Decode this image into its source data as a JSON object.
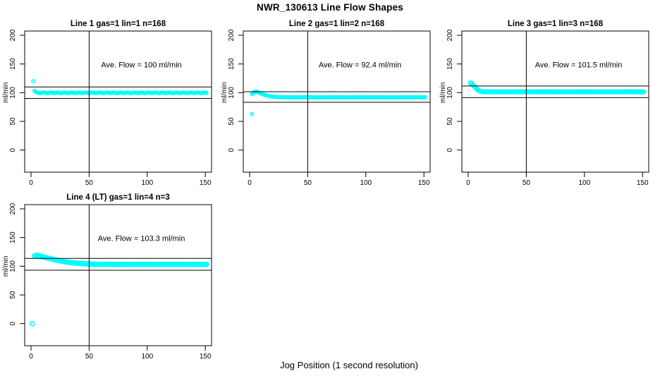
{
  "title": "NWR_130613  Line Flow Shapes",
  "xlabel": "Jog Position (1 second resolution)",
  "colors": {
    "points": "#00FFFF",
    "lines": "#000000",
    "background": "#FFFFFF"
  },
  "chart_data": [
    {
      "type": "scatter",
      "title": "Line 1 gas=1 lin=1 n=168",
      "annotation": "Ave. Flow =  100  ml/min",
      "ave_flow": 100,
      "gas": 1,
      "lin": 1,
      "n": 168,
      "ylabel": "ml/min",
      "x_ticks": [
        0,
        50,
        100,
        150
      ],
      "y_ticks": [
        0,
        50,
        100,
        150,
        200
      ],
      "xlim": [
        -6,
        156
      ],
      "ylim": [
        -35,
        207
      ],
      "vline_x": 50,
      "hlines": [
        110,
        90
      ],
      "marker_radius": 2.2,
      "points": [
        [
          2,
          120
        ],
        [
          3,
          103
        ],
        [
          5,
          100.4
        ],
        [
          8,
          99.3
        ],
        [
          11,
          100.4
        ],
        [
          14,
          99.2
        ],
        [
          17,
          100.3
        ],
        [
          20,
          99.3
        ],
        [
          23,
          100.4
        ],
        [
          26,
          99.2
        ],
        [
          29,
          100.3
        ],
        [
          32,
          99.3
        ],
        [
          35,
          100.4
        ],
        [
          38,
          99.2
        ],
        [
          41,
          100.3
        ],
        [
          44,
          99.3
        ],
        [
          47,
          100.4
        ],
        [
          50,
          99.2
        ],
        [
          53,
          100.3
        ],
        [
          56,
          99.3
        ],
        [
          59,
          100.4
        ],
        [
          62,
          99.2
        ],
        [
          65,
          100.3
        ],
        [
          68,
          99.3
        ],
        [
          71,
          100.4
        ],
        [
          74,
          99.2
        ],
        [
          77,
          100.3
        ],
        [
          80,
          99.3
        ],
        [
          83,
          100.4
        ],
        [
          86,
          99.2
        ],
        [
          89,
          100.3
        ],
        [
          92,
          99.3
        ],
        [
          95,
          100.4
        ],
        [
          98,
          99.2
        ],
        [
          101,
          100.3
        ],
        [
          104,
          99.3
        ],
        [
          107,
          100.4
        ],
        [
          110,
          99.2
        ],
        [
          113,
          100.3
        ],
        [
          116,
          99.3
        ],
        [
          119,
          100.4
        ],
        [
          122,
          99.2
        ],
        [
          125,
          100.3
        ],
        [
          128,
          99.3
        ],
        [
          131,
          100.4
        ],
        [
          134,
          99.2
        ],
        [
          137,
          100.3
        ],
        [
          140,
          99.3
        ],
        [
          143,
          100.4
        ],
        [
          146,
          99.2
        ],
        [
          149,
          100.3
        ],
        [
          151,
          99.8
        ]
      ],
      "outliers": []
    },
    {
      "type": "scatter",
      "title": "Line 2 gas=1 lin=2 n=168",
      "annotation": "Ave. Flow =  92.4  ml/min",
      "ave_flow": 92.4,
      "gas": 1,
      "lin": 2,
      "n": 168,
      "ylabel": "ml/min",
      "x_ticks": [
        0,
        50,
        100,
        150
      ],
      "y_ticks": [
        0,
        50,
        100,
        150,
        200
      ],
      "xlim": [
        -6,
        156
      ],
      "ylim": [
        -35,
        207
      ],
      "vline_x": 50,
      "hlines": [
        101.6,
        83.2
      ],
      "marker_radius": 2.2,
      "points": [
        [
          2,
          97.5
        ],
        [
          3,
          99.5
        ],
        [
          4,
          101
        ],
        [
          5,
          102
        ],
        [
          6,
          101.8
        ],
        [
          7,
          101
        ],
        [
          8,
          100.1
        ],
        [
          9,
          99.2
        ],
        [
          10,
          98.3
        ],
        [
          12,
          96.8
        ],
        [
          14,
          95.5
        ],
        [
          16,
          94.5
        ],
        [
          18,
          93.7
        ],
        [
          20,
          93.1
        ],
        [
          23,
          92.5
        ],
        [
          26,
          92.1
        ],
        [
          29,
          92.4
        ],
        [
          32,
          91.9
        ],
        [
          35,
          92.3
        ],
        [
          38,
          91.8
        ],
        [
          41,
          92.3
        ],
        [
          44,
          91.9
        ],
        [
          47,
          92.3
        ],
        [
          50,
          91.8
        ],
        [
          53,
          92.3
        ],
        [
          56,
          91.9
        ],
        [
          59,
          92.3
        ],
        [
          62,
          91.8
        ],
        [
          65,
          92.3
        ],
        [
          68,
          91.9
        ],
        [
          71,
          92.3
        ],
        [
          74,
          91.8
        ],
        [
          77,
          92.3
        ],
        [
          80,
          91.9
        ],
        [
          83,
          92.3
        ],
        [
          86,
          91.8
        ],
        [
          89,
          92.3
        ],
        [
          92,
          91.9
        ],
        [
          95,
          92.3
        ],
        [
          98,
          91.8
        ],
        [
          101,
          92.3
        ],
        [
          104,
          91.9
        ],
        [
          107,
          92.3
        ],
        [
          110,
          91.8
        ],
        [
          113,
          92.3
        ],
        [
          116,
          91.9
        ],
        [
          119,
          92.3
        ],
        [
          122,
          91.8
        ],
        [
          125,
          92.3
        ],
        [
          128,
          91.9
        ],
        [
          131,
          92.3
        ],
        [
          134,
          91.8
        ],
        [
          137,
          92.3
        ],
        [
          140,
          91.9
        ],
        [
          143,
          92.3
        ],
        [
          146,
          91.8
        ],
        [
          149,
          92.2
        ],
        [
          151,
          92
        ]
      ],
      "outliers": [
        [
          2,
          63
        ]
      ]
    },
    {
      "type": "scatter",
      "title": "Line 3 gas=1 lin=3 n=168",
      "annotation": "Ave. Flow =  101.5  ml/min",
      "ave_flow": 101.5,
      "gas": 1,
      "lin": 3,
      "n": 168,
      "ylabel": "ml/min",
      "x_ticks": [
        0,
        50,
        100,
        150
      ],
      "y_ticks": [
        0,
        50,
        100,
        150,
        200
      ],
      "xlim": [
        -6,
        156
      ],
      "ylim": [
        -35,
        207
      ],
      "vline_x": 50,
      "hlines": [
        111.7,
        91.4
      ],
      "marker_radius": 2.8,
      "points": [
        [
          2,
          117
        ],
        [
          3,
          116
        ],
        [
          4,
          114
        ],
        [
          5,
          111.5
        ],
        [
          6,
          109
        ],
        [
          7,
          107
        ],
        [
          8,
          105.2
        ],
        [
          9,
          103.8
        ],
        [
          10,
          102.8
        ],
        [
          11,
          102.1
        ],
        [
          12,
          101.8
        ],
        [
          14,
          101.5
        ],
        [
          17,
          101.4
        ],
        [
          20,
          101.5
        ],
        [
          24,
          101.4
        ],
        [
          28,
          101.5
        ],
        [
          32,
          101.4
        ],
        [
          36,
          101.5
        ],
        [
          40,
          101.4
        ],
        [
          45,
          101.5
        ],
        [
          50,
          101.4
        ],
        [
          55,
          101.5
        ],
        [
          60,
          101.4
        ],
        [
          65,
          101.5
        ],
        [
          70,
          101.4
        ],
        [
          75,
          101.5
        ],
        [
          80,
          101.4
        ],
        [
          85,
          101.5
        ],
        [
          90,
          101.4
        ],
        [
          95,
          101.5
        ],
        [
          100,
          101.4
        ],
        [
          105,
          101.5
        ],
        [
          110,
          101.4
        ],
        [
          115,
          101.5
        ],
        [
          120,
          101.4
        ],
        [
          125,
          101.5
        ],
        [
          130,
          101.4
        ],
        [
          135,
          101.5
        ],
        [
          140,
          101.4
        ],
        [
          145,
          101.5
        ],
        [
          149,
          101.4
        ],
        [
          151,
          101.5
        ]
      ],
      "outliers": []
    },
    {
      "type": "scatter",
      "title": "Line 4 (LT) gas=1 lin=4 n=3",
      "annotation": "Ave. Flow =  103.3  ml/min",
      "ave_flow": 103.3,
      "gas": 1,
      "lin": 4,
      "n": 3,
      "ylabel": "ml/min",
      "x_ticks": [
        0,
        50,
        100,
        150
      ],
      "y_ticks": [
        0,
        50,
        100,
        150,
        200
      ],
      "xlim": [
        -6,
        156
      ],
      "ylim": [
        -35,
        207
      ],
      "vline_x": 50,
      "hlines": [
        113.6,
        93
      ],
      "marker_radius": 3,
      "points": [
        [
          3,
          118
        ],
        [
          5,
          119
        ],
        [
          7,
          118.2
        ],
        [
          9,
          117
        ],
        [
          12,
          115.5
        ],
        [
          15,
          114
        ],
        [
          18,
          112.5
        ],
        [
          21,
          111
        ],
        [
          24,
          109.8
        ],
        [
          27,
          108.6
        ],
        [
          30,
          107.6
        ],
        [
          33,
          106.7
        ],
        [
          36,
          106
        ],
        [
          39,
          105.4
        ],
        [
          42,
          104.9
        ],
        [
          45,
          104.5
        ],
        [
          48,
          104.1
        ],
        [
          51,
          103.8
        ],
        [
          55,
          103.6
        ],
        [
          60,
          103.4
        ],
        [
          64,
          103.2
        ],
        [
          68,
          103.4
        ],
        [
          72,
          103.1
        ],
        [
          76,
          103.3
        ],
        [
          80,
          103.2
        ],
        [
          84,
          103.4
        ],
        [
          88,
          103.1
        ],
        [
          92,
          103.3
        ],
        [
          96,
          103.2
        ],
        [
          100,
          103.4
        ],
        [
          104,
          103.1
        ],
        [
          108,
          103.3
        ],
        [
          112,
          103.2
        ],
        [
          116,
          103.4
        ],
        [
          120,
          103.1
        ],
        [
          124,
          103.3
        ],
        [
          128,
          103.2
        ],
        [
          132,
          103.4
        ],
        [
          136,
          103.1
        ],
        [
          140,
          103.3
        ],
        [
          144,
          103.2
        ],
        [
          148,
          103.3
        ],
        [
          151,
          103.2
        ]
      ],
      "outliers": [
        [
          1,
          0
        ]
      ]
    }
  ]
}
